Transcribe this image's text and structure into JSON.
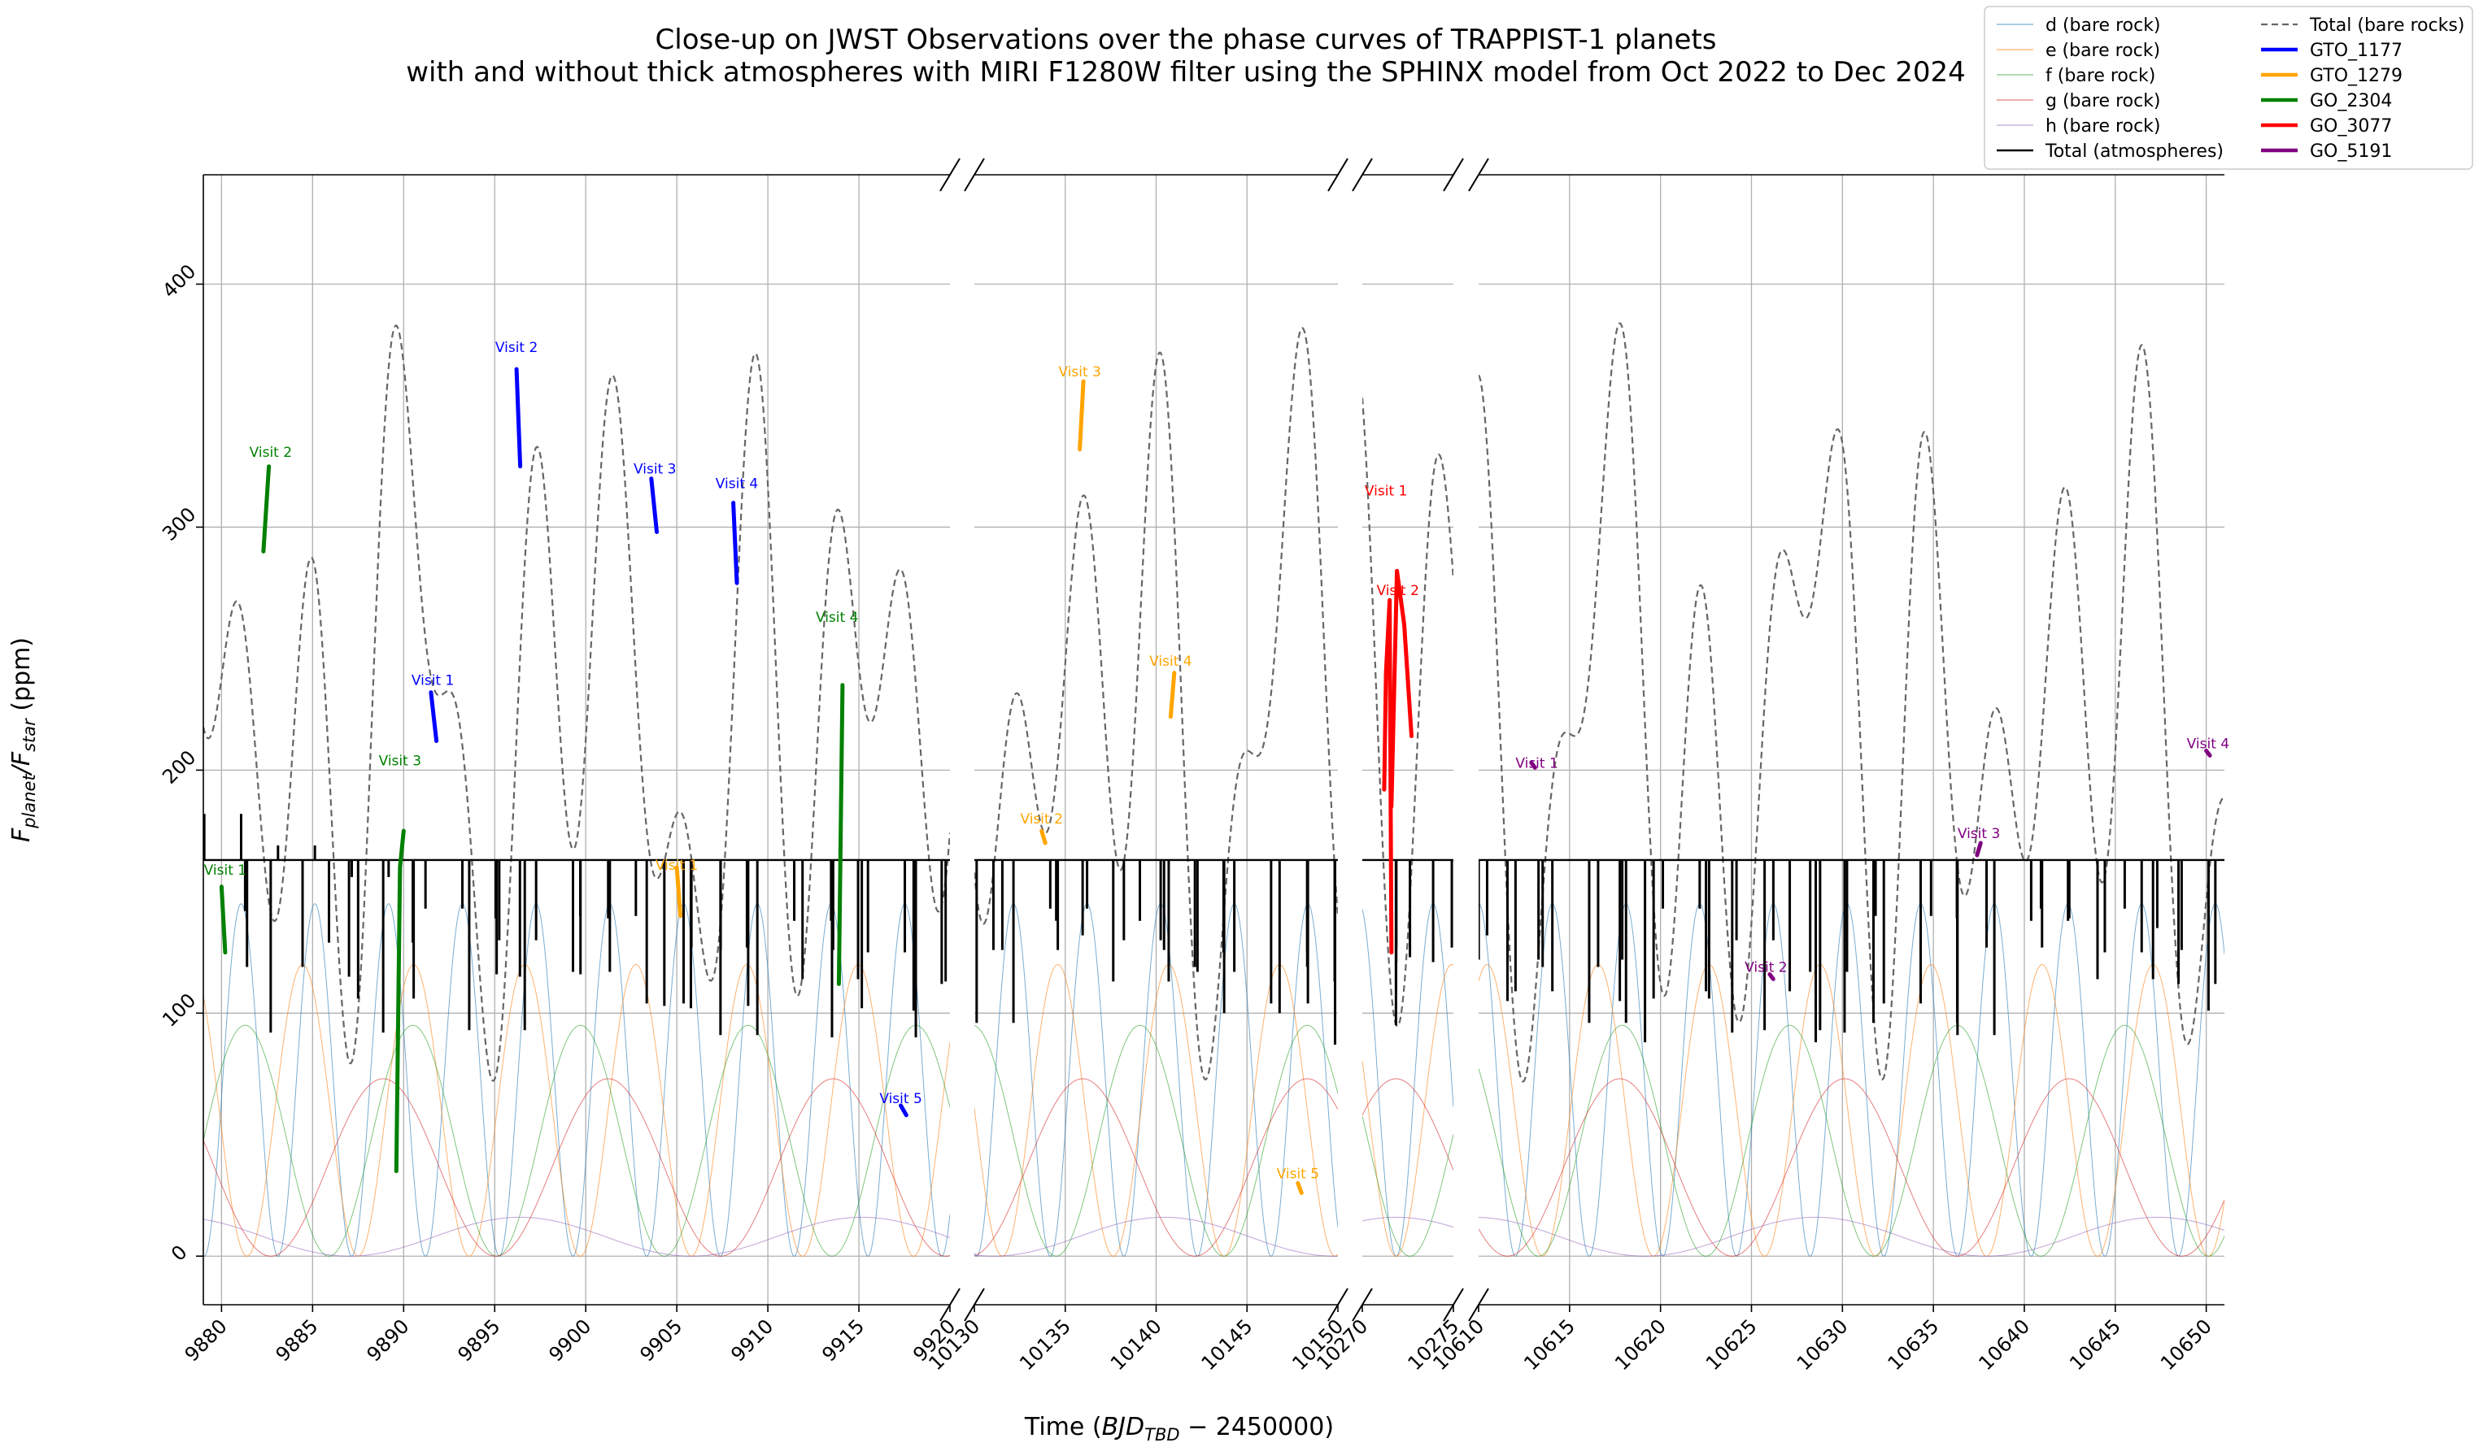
{
  "chart_data": {
    "type": "line",
    "title_lines": [
      "Close-up on JWST Observations over the phase curves of TRAPPIST-1 planets",
      "with and without thick atmospheres with MIRI F1280W filter using the SPHINX model from Oct 2022 to Dec 2024"
    ],
    "xlabel": "Time ($BJD_{TBD} - 2450000$)",
    "xlabel_parts": [
      "Time (",
      "BJD",
      "TBD",
      " − 2450000)"
    ],
    "ylabel_parts": [
      "F",
      "planet",
      "/F",
      "star",
      " (ppm)"
    ],
    "ylim": [
      -20,
      445
    ],
    "yticks": [
      0,
      100,
      200,
      300,
      400
    ],
    "grid": true,
    "legend_position": "top-right",
    "panels": [
      {
        "xlim": [
          9879,
          9920
        ],
        "xticks": [
          9880,
          9885,
          9890,
          9895,
          9900,
          9905,
          9910,
          9915,
          9920
        ]
      },
      {
        "xlim": [
          10130,
          10150
        ],
        "xticks": [
          10130,
          10135,
          10140,
          10145,
          10150
        ]
      },
      {
        "xlim": [
          10270,
          10275
        ],
        "xticks": [
          10270,
          10275
        ]
      },
      {
        "xlim": [
          10610,
          10651
        ],
        "xticks": [
          10610,
          10615,
          10620,
          10625,
          10630,
          10635,
          10640,
          10645,
          10650
        ]
      }
    ],
    "legend": [
      {
        "label": "d (bare rock)",
        "color": "#1f77b4",
        "style": "thin"
      },
      {
        "label": "e (bare rock)",
        "color": "#ff7f0e",
        "style": "thin"
      },
      {
        "label": "f (bare rock)",
        "color": "#2ca02c",
        "style": "thin"
      },
      {
        "label": "g (bare rock)",
        "color": "#d62728",
        "style": "thin"
      },
      {
        "label": "h (bare rock)",
        "color": "#9467bd",
        "style": "thin"
      },
      {
        "label": "Total (atmospheres)",
        "color": "#000000",
        "style": "solid"
      },
      {
        "label": "Total (bare rocks)",
        "color": "#666666",
        "style": "dashed"
      },
      {
        "label": "GTO_1177",
        "color": "#0000ff",
        "style": "thick"
      },
      {
        "label": "GTO_1279",
        "color": "#ffa500",
        "style": "thick"
      },
      {
        "label": "GO_2304",
        "color": "#008000",
        "style": "thick"
      },
      {
        "label": "GO_3077",
        "color": "#ff0000",
        "style": "thick"
      },
      {
        "label": "GO_5191",
        "color": "#800080",
        "style": "thick"
      }
    ],
    "planets": [
      {
        "name": "d (bare rock)",
        "color": "#1f77b4",
        "period": 4.0496,
        "amp": 145,
        "t0": 9891.2
      },
      {
        "name": "e (bare rock)",
        "color": "#ff7f0e",
        "period": 6.101,
        "amp": 120,
        "t0": 9887.5
      },
      {
        "name": "f (bare rock)",
        "color": "#2ca02c",
        "period": 9.2075,
        "amp": 95,
        "t0": 9885.9
      },
      {
        "name": "g (bare rock)",
        "color": "#d62728",
        "period": 12.354,
        "amp": 73,
        "t0": 9882.7
      },
      {
        "name": "h (bare rock)",
        "color": "#9467bd",
        "period": 18.773,
        "amp": 16,
        "t0": 9887.0
      }
    ],
    "atmosphere_baseline": 163,
    "observations": [
      {
        "program": "GO_2304",
        "color": "#008000",
        "label": "Visit 1",
        "t": [
          9880.0,
          9880.2
        ],
        "y": [
          152,
          125
        ],
        "lx": 9880.2,
        "ly": 157
      },
      {
        "program": "GO_2304",
        "color": "#008000",
        "label": "Visit 2",
        "t": [
          9882.3,
          9882.6
        ],
        "y": [
          290,
          325
        ],
        "lx": 9882.7,
        "ly": 329
      },
      {
        "program": "GO_2304",
        "color": "#008000",
        "label": "Visit 3",
        "t": [
          9889.6,
          9889.8,
          9890.0
        ],
        "y": [
          35,
          160,
          175
        ],
        "lx": 9889.8,
        "ly": 202
      },
      {
        "program": "GO_2304",
        "color": "#008000",
        "label": "Visit 4",
        "t": [
          9913.9,
          9914.1
        ],
        "y": [
          112,
          235
        ],
        "lx": 9913.8,
        "ly": 261
      },
      {
        "program": "GTO_1177",
        "color": "#0000ff",
        "label": "Visit 1",
        "t": [
          9891.5,
          9891.8
        ],
        "y": [
          232,
          212
        ],
        "lx": 9891.6,
        "ly": 235
      },
      {
        "program": "GTO_1177",
        "color": "#0000ff",
        "label": "Visit 2",
        "t": [
          9896.2,
          9896.4
        ],
        "y": [
          365,
          325
        ],
        "lx": 9896.2,
        "ly": 372
      },
      {
        "program": "GTO_1177",
        "color": "#0000ff",
        "label": "Visit 3",
        "t": [
          9903.6,
          9903.9
        ],
        "y": [
          320,
          298
        ],
        "lx": 9903.8,
        "ly": 322
      },
      {
        "program": "GTO_1177",
        "color": "#0000ff",
        "label": "Visit 4",
        "t": [
          9908.1,
          9908.3
        ],
        "y": [
          310,
          277
        ],
        "lx": 9908.3,
        "ly": 316
      },
      {
        "program": "GTO_1177",
        "color": "#0000ff",
        "label": "Visit 5",
        "t": [
          9917.3,
          9917.6
        ],
        "y": [
          62,
          58
        ],
        "lx": 9917.3,
        "ly": 63
      },
      {
        "program": "GTO_1279",
        "color": "#ffa500",
        "label": "Visit 1",
        "t": [
          9905.0,
          9905.2
        ],
        "y": [
          160,
          140
        ],
        "lx": 9905.0,
        "ly": 159
      },
      {
        "program": "GTO_1279",
        "color": "#ffa500",
        "label": "Visit 2",
        "t": [
          10133.7,
          10133.9
        ],
        "y": [
          175,
          170
        ],
        "lx": 10133.7,
        "ly": 178
      },
      {
        "program": "GTO_1279",
        "color": "#ffa500",
        "label": "Visit 3",
        "t": [
          10135.8,
          10136.0
        ],
        "y": [
          332,
          360
        ],
        "lx": 10135.8,
        "ly": 362
      },
      {
        "program": "GTO_1279",
        "color": "#ffa500",
        "label": "Visit 4",
        "t": [
          10140.8,
          10141.0
        ],
        "y": [
          222,
          240
        ],
        "lx": 10140.8,
        "ly": 243
      },
      {
        "program": "GTO_1279",
        "color": "#ffa500",
        "label": "Visit 5",
        "t": [
          10147.8,
          10148.0
        ],
        "y": [
          30,
          26
        ],
        "lx": 10147.8,
        "ly": 32
      },
      {
        "program": "GO_3077",
        "color": "#ff0000",
        "label": "Visit 1",
        "t": [
          10271.2,
          10271.3,
          10271.5,
          10271.6
        ],
        "y": [
          192,
          240,
          270,
          125
        ],
        "lx": 10271.3,
        "ly": 313
      },
      {
        "program": "GO_3077",
        "color": "#ff0000",
        "label": "Visit 2",
        "t": [
          10271.6,
          10271.9,
          10272.3,
          10272.7
        ],
        "y": [
          185,
          282,
          260,
          214
        ],
        "lx": 10271.95,
        "ly": 272
      },
      {
        "program": "GO_5191",
        "color": "#800080",
        "label": "Visit 1",
        "t": [
          10612.9,
          10613.1
        ],
        "y": [
          203,
          201
        ],
        "lx": 10613.2,
        "ly": 201
      },
      {
        "program": "GO_5191",
        "color": "#800080",
        "label": "Visit 2",
        "t": [
          10626.0,
          10626.2
        ],
        "y": [
          116,
          114
        ],
        "lx": 10625.8,
        "ly": 117
      },
      {
        "program": "GO_5191",
        "color": "#800080",
        "label": "Visit 3",
        "t": [
          10637.4,
          10637.6
        ],
        "y": [
          165,
          170
        ],
        "lx": 10637.5,
        "ly": 172
      },
      {
        "program": "GO_5191",
        "color": "#800080",
        "label": "Visit 4",
        "t": [
          10650.0,
          10650.2
        ],
        "y": [
          208,
          206
        ],
        "lx": 10650.1,
        "ly": 209
      }
    ]
  }
}
